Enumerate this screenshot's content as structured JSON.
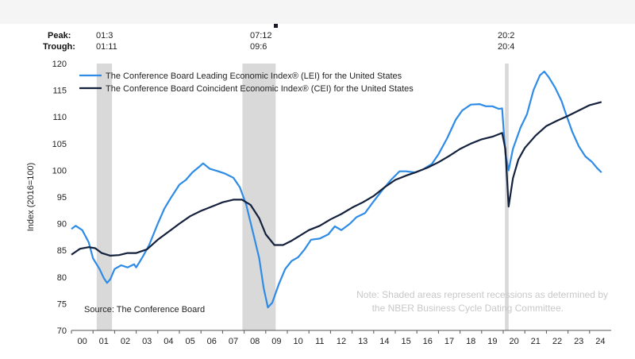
{
  "chart_data": {
    "type": "line",
    "title": "",
    "xlabel": "",
    "ylabel": "Index (2016=100)",
    "ylim": [
      70,
      120
    ],
    "yticks": [
      "70",
      "75",
      "80",
      "85",
      "90",
      "95",
      "100",
      "105",
      "110",
      "115",
      "120"
    ],
    "xticks": [
      "00",
      "01",
      "02",
      "03",
      "04",
      "05",
      "06",
      "07",
      "08",
      "09",
      "10",
      "11",
      "12",
      "13",
      "14",
      "15",
      "16",
      "17",
      "18",
      "19",
      "20",
      "21",
      "22",
      "23",
      "24"
    ],
    "xrange": [
      2000,
      2025
    ],
    "peak_label": "Peak:",
    "trough_label": "Trough:",
    "recessions": [
      {
        "peak": "01:3",
        "trough": "01:11",
        "start": 2001.17,
        "end": 2001.88
      },
      {
        "peak": "07:12",
        "trough": "09:6",
        "start": 2007.92,
        "end": 2009.46
      },
      {
        "peak": "20:2",
        "trough": "20:4",
        "start": 2020.08,
        "end": 2020.25
      }
    ],
    "grid": false,
    "legend_placement": "top-left",
    "note_line1": "Note: Shaded areas represent recessions as determined by",
    "note_line2": "the NBER Business Cycle Dating Committee.",
    "source": "Source: The Conference Board",
    "series": [
      {
        "name": "The Conference Board Leading Economic Index® (LEI) for the United States",
        "color": "#2e8be6",
        "points": [
          [
            2000.0,
            89.0
          ],
          [
            2000.2,
            89.6
          ],
          [
            2000.5,
            88.8
          ],
          [
            2000.8,
            86.5
          ],
          [
            2001.0,
            83.5
          ],
          [
            2001.3,
            81.5
          ],
          [
            2001.5,
            79.8
          ],
          [
            2001.65,
            78.9
          ],
          [
            2001.8,
            79.6
          ],
          [
            2002.0,
            81.5
          ],
          [
            2002.3,
            82.2
          ],
          [
            2002.6,
            81.8
          ],
          [
            2002.9,
            82.4
          ],
          [
            2003.0,
            81.8
          ],
          [
            2003.3,
            83.8
          ],
          [
            2003.6,
            86.0
          ],
          [
            2004.0,
            90.0
          ],
          [
            2004.3,
            92.8
          ],
          [
            2004.6,
            94.8
          ],
          [
            2005.0,
            97.3
          ],
          [
            2005.3,
            98.2
          ],
          [
            2005.6,
            99.6
          ],
          [
            2005.9,
            100.6
          ],
          [
            2006.1,
            101.3
          ],
          [
            2006.4,
            100.3
          ],
          [
            2006.8,
            99.8
          ],
          [
            2007.1,
            99.4
          ],
          [
            2007.5,
            98.6
          ],
          [
            2007.8,
            96.8
          ],
          [
            2008.1,
            93.5
          ],
          [
            2008.4,
            88.5
          ],
          [
            2008.7,
            83.5
          ],
          [
            2008.9,
            78.0
          ],
          [
            2009.1,
            74.3
          ],
          [
            2009.3,
            75.2
          ],
          [
            2009.6,
            78.6
          ],
          [
            2009.9,
            81.5
          ],
          [
            2010.2,
            83.0
          ],
          [
            2010.5,
            83.7
          ],
          [
            2010.8,
            85.2
          ],
          [
            2011.1,
            87.0
          ],
          [
            2011.5,
            87.2
          ],
          [
            2011.9,
            88.0
          ],
          [
            2012.2,
            89.5
          ],
          [
            2012.5,
            88.8
          ],
          [
            2012.9,
            90.0
          ],
          [
            2013.2,
            91.2
          ],
          [
            2013.6,
            92.0
          ],
          [
            2014.0,
            94.2
          ],
          [
            2014.4,
            96.3
          ],
          [
            2014.8,
            98.2
          ],
          [
            2015.2,
            99.8
          ],
          [
            2015.5,
            99.8
          ],
          [
            2015.9,
            99.6
          ],
          [
            2016.3,
            100.2
          ],
          [
            2016.7,
            101.2
          ],
          [
            2017.0,
            103.0
          ],
          [
            2017.4,
            106.0
          ],
          [
            2017.8,
            109.5
          ],
          [
            2018.1,
            111.2
          ],
          [
            2018.5,
            112.3
          ],
          [
            2018.9,
            112.4
          ],
          [
            2019.2,
            112.0
          ],
          [
            2019.5,
            112.0
          ],
          [
            2019.8,
            111.5
          ],
          [
            2019.95,
            111.6
          ],
          [
            2020.1,
            103.0
          ],
          [
            2020.25,
            100.0
          ],
          [
            2020.45,
            104.0
          ],
          [
            2020.8,
            108.0
          ],
          [
            2021.1,
            110.5
          ],
          [
            2021.4,
            115.0
          ],
          [
            2021.7,
            117.8
          ],
          [
            2021.9,
            118.5
          ],
          [
            2022.1,
            117.5
          ],
          [
            2022.4,
            115.5
          ],
          [
            2022.7,
            113.0
          ],
          [
            2022.9,
            110.6
          ],
          [
            2023.2,
            107.2
          ],
          [
            2023.5,
            104.5
          ],
          [
            2023.8,
            102.6
          ],
          [
            2024.1,
            101.6
          ],
          [
            2024.35,
            100.4
          ],
          [
            2024.55,
            99.6
          ]
        ]
      },
      {
        "name": "The Conference Board Coincident Economic Index® (CEI) for the United States",
        "color": "#14213d",
        "points": [
          [
            2000.0,
            84.2
          ],
          [
            2000.4,
            85.3
          ],
          [
            2000.8,
            85.6
          ],
          [
            2001.1,
            85.4
          ],
          [
            2001.4,
            84.5
          ],
          [
            2001.8,
            84.0
          ],
          [
            2002.2,
            84.1
          ],
          [
            2002.6,
            84.5
          ],
          [
            2003.0,
            84.5
          ],
          [
            2003.5,
            85.2
          ],
          [
            2004.0,
            87.0
          ],
          [
            2004.5,
            88.5
          ],
          [
            2005.0,
            90.0
          ],
          [
            2005.5,
            91.4
          ],
          [
            2006.0,
            92.4
          ],
          [
            2006.5,
            93.2
          ],
          [
            2007.0,
            94.0
          ],
          [
            2007.5,
            94.5
          ],
          [
            2007.9,
            94.5
          ],
          [
            2008.3,
            93.5
          ],
          [
            2008.7,
            91.0
          ],
          [
            2009.0,
            88.0
          ],
          [
            2009.4,
            86.0
          ],
          [
            2009.8,
            86.0
          ],
          [
            2010.2,
            86.8
          ],
          [
            2010.6,
            87.8
          ],
          [
            2011.0,
            88.8
          ],
          [
            2011.5,
            89.6
          ],
          [
            2012.0,
            90.8
          ],
          [
            2012.5,
            91.8
          ],
          [
            2013.0,
            93.0
          ],
          [
            2013.5,
            94.0
          ],
          [
            2014.0,
            95.2
          ],
          [
            2014.5,
            96.8
          ],
          [
            2015.0,
            98.2
          ],
          [
            2015.5,
            99.0
          ],
          [
            2016.0,
            99.7
          ],
          [
            2016.5,
            100.5
          ],
          [
            2017.0,
            101.5
          ],
          [
            2017.5,
            102.7
          ],
          [
            2018.0,
            104.0
          ],
          [
            2018.5,
            105.0
          ],
          [
            2019.0,
            105.8
          ],
          [
            2019.5,
            106.3
          ],
          [
            2019.95,
            107.0
          ],
          [
            2020.1,
            104.0
          ],
          [
            2020.25,
            93.2
          ],
          [
            2020.45,
            98.5
          ],
          [
            2020.7,
            102.0
          ],
          [
            2021.0,
            104.2
          ],
          [
            2021.5,
            106.5
          ],
          [
            2022.0,
            108.3
          ],
          [
            2022.5,
            109.3
          ],
          [
            2023.0,
            110.2
          ],
          [
            2023.5,
            111.2
          ],
          [
            2024.0,
            112.2
          ],
          [
            2024.55,
            112.8
          ]
        ]
      }
    ]
  }
}
